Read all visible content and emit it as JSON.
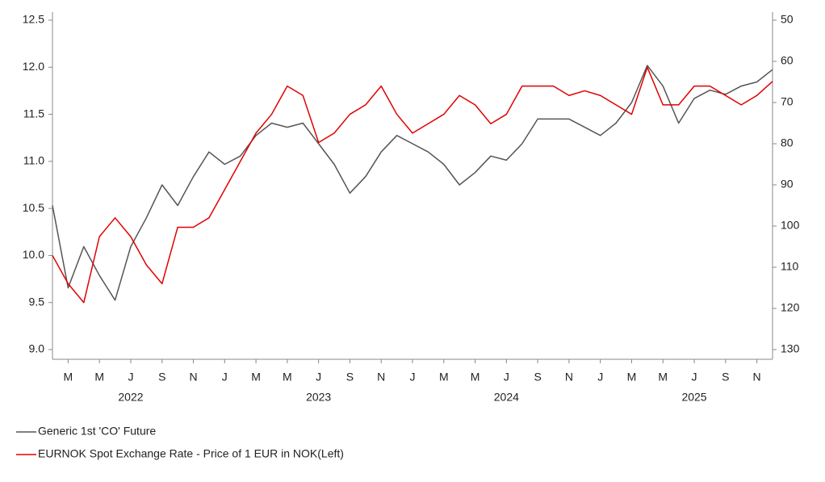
{
  "chart_data": {
    "type": "line",
    "x": [
      "2022-02",
      "2022-03",
      "2022-04",
      "2022-05",
      "2022-06",
      "2022-07",
      "2022-08",
      "2022-09",
      "2022-10",
      "2022-11",
      "2022-12",
      "2023-01",
      "2023-02",
      "2023-03",
      "2023-04",
      "2023-05",
      "2023-06",
      "2023-07",
      "2023-08",
      "2023-09",
      "2023-10",
      "2023-11",
      "2023-12",
      "2024-01",
      "2024-02",
      "2024-03",
      "2024-04",
      "2024-05",
      "2024-06",
      "2024-07",
      "2024-08",
      "2024-09",
      "2024-10",
      "2024-11",
      "2024-12",
      "2025-01",
      "2025-02",
      "2025-03",
      "2025-04",
      "2025-05",
      "2025-06",
      "2025-07",
      "2025-08",
      "2025-09",
      "2025-10",
      "2025-11",
      "2025-12"
    ],
    "series": [
      {
        "name": "Generic 1st 'CO' Future",
        "color": "#555555",
        "axis": "y2",
        "values": [
          95,
          115,
          105,
          112,
          118,
          105,
          98,
          90,
          95,
          88,
          82,
          85,
          83,
          78,
          75,
          76,
          75,
          80,
          85,
          92,
          88,
          82,
          78,
          80,
          82,
          85,
          90,
          87,
          83,
          84,
          80,
          74,
          74,
          74,
          76,
          78,
          75,
          70,
          61,
          66,
          75,
          69,
          67,
          68,
          66,
          65,
          62
        ]
      },
      {
        "name": "EURNOK Spot Exchange Rate - Price of 1 EUR in NOK(Left)",
        "color": "#e00000",
        "values": [
          10.0,
          9.7,
          9.5,
          10.2,
          10.4,
          10.2,
          9.9,
          9.7,
          10.3,
          10.3,
          10.4,
          10.7,
          11.0,
          11.3,
          11.5,
          11.8,
          11.7,
          11.2,
          11.3,
          11.5,
          11.6,
          11.8,
          11.5,
          11.3,
          11.4,
          11.5,
          11.7,
          11.6,
          11.4,
          11.5,
          11.8,
          11.8,
          11.8,
          11.7,
          11.75,
          11.7,
          11.6,
          11.5,
          12.0,
          11.6,
          11.6,
          11.8,
          11.8,
          11.7,
          11.6,
          11.7,
          11.85
        ]
      }
    ],
    "xlim": [
      "2022-02",
      "2025-12"
    ],
    "xticks": [
      {
        "value": "2022-03",
        "label": "M"
      },
      {
        "value": "2022-05",
        "label": "M"
      },
      {
        "value": "2022-07",
        "label": "J"
      },
      {
        "value": "2022-09",
        "label": "S"
      },
      {
        "value": "2022-11",
        "label": "N"
      },
      {
        "value": "2023-01",
        "label": "J"
      },
      {
        "value": "2023-03",
        "label": "M"
      },
      {
        "value": "2023-05",
        "label": "M"
      },
      {
        "value": "2023-07",
        "label": "J"
      },
      {
        "value": "2023-09",
        "label": "S"
      },
      {
        "value": "2023-11",
        "label": "N"
      },
      {
        "value": "2024-01",
        "label": "J"
      },
      {
        "value": "2024-03",
        "label": "M"
      },
      {
        "value": "2024-05",
        "label": "M"
      },
      {
        "value": "2024-07",
        "label": "J"
      },
      {
        "value": "2024-09",
        "label": "S"
      },
      {
        "value": "2024-11",
        "label": "N"
      },
      {
        "value": "2025-01",
        "label": "J"
      },
      {
        "value": "2025-03",
        "label": "M"
      },
      {
        "value": "2025-05",
        "label": "M"
      },
      {
        "value": "2025-07",
        "label": "J"
      },
      {
        "value": "2025-09",
        "label": "S"
      },
      {
        "value": "2025-11",
        "label": "N"
      }
    ],
    "year_labels": [
      {
        "value": "2022-07",
        "label": "2022"
      },
      {
        "value": "2023-07",
        "label": "2023"
      },
      {
        "value": "2024-07",
        "label": "2024"
      },
      {
        "value": "2025-07",
        "label": "2025"
      }
    ],
    "ylim": [
      9.0,
      12.5
    ],
    "yticks": [
      {
        "value": 9.0,
        "label": "9.0"
      },
      {
        "value": 9.5,
        "label": "9.5"
      },
      {
        "value": 10.0,
        "label": "10.0"
      },
      {
        "value": 10.5,
        "label": "10.5"
      },
      {
        "value": 11.0,
        "label": "11.0"
      },
      {
        "value": 11.5,
        "label": "11.5"
      },
      {
        "value": 12.0,
        "label": "12.0"
      },
      {
        "value": 12.5,
        "label": "12.5"
      }
    ],
    "y2lim": [
      130,
      50
    ],
    "y2ticks": [
      50,
      60,
      70,
      80,
      90,
      100,
      110,
      120,
      130
    ],
    "grid": false
  }
}
